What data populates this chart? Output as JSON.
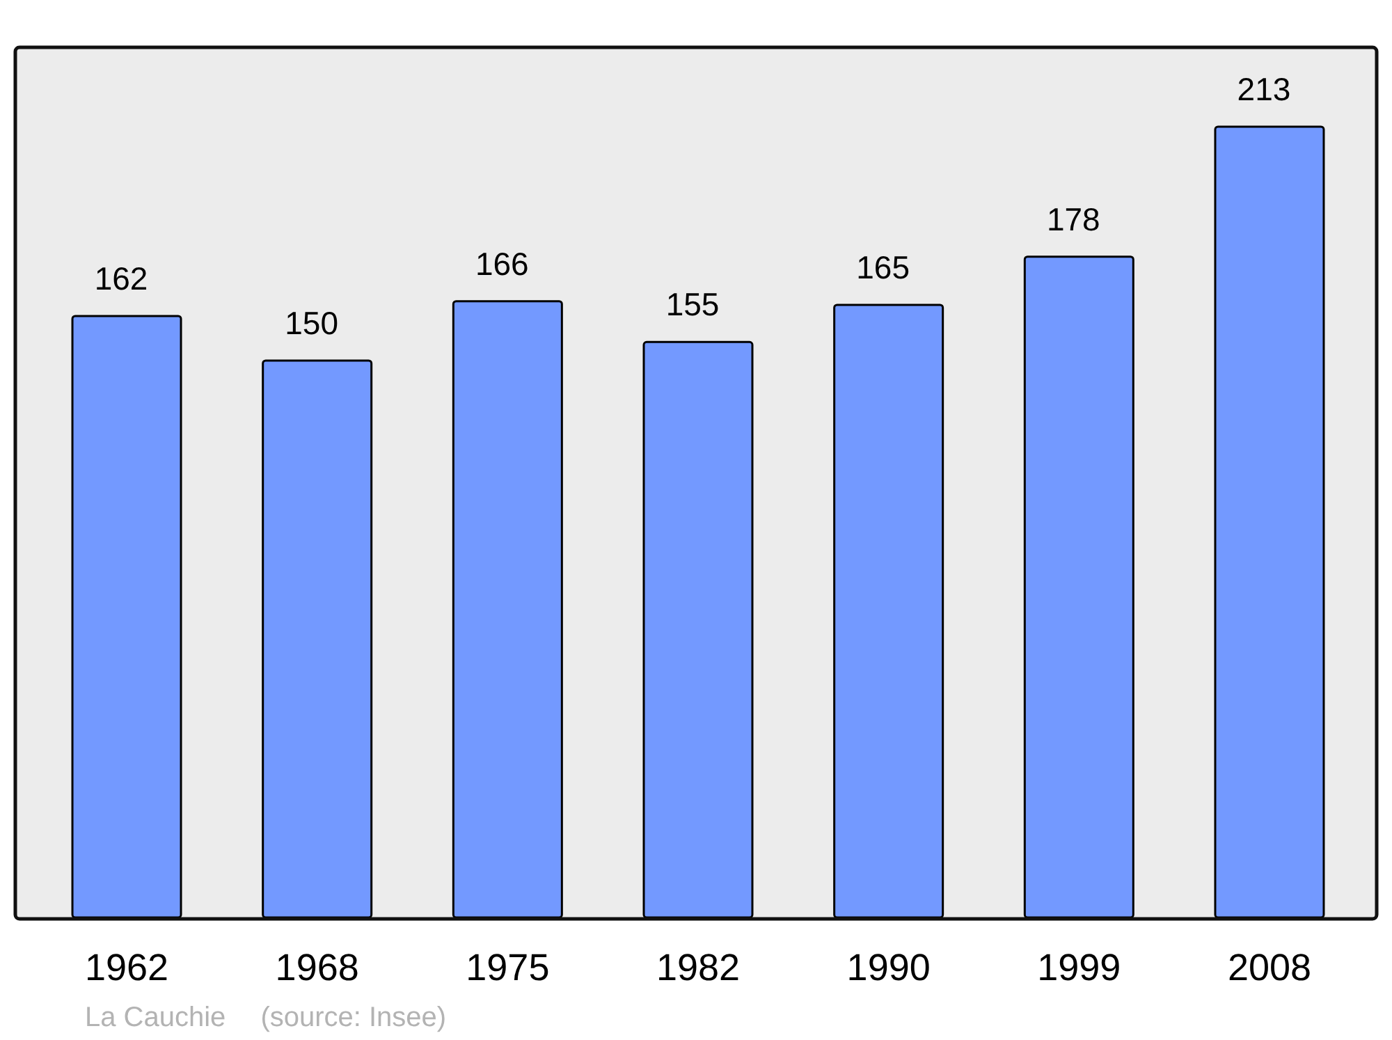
{
  "chart_data": {
    "type": "bar",
    "categories": [
      "1962",
      "1968",
      "1975",
      "1982",
      "1990",
      "1999",
      "2008"
    ],
    "values": [
      162,
      150,
      166,
      155,
      165,
      178,
      213
    ],
    "color": "#7399ff",
    "ylim": [
      0,
      234
    ],
    "tick_labels": "x",
    "data_labels": true,
    "annotations": [
      "La Cauchie",
      "(source: Insee)"
    ]
  }
}
